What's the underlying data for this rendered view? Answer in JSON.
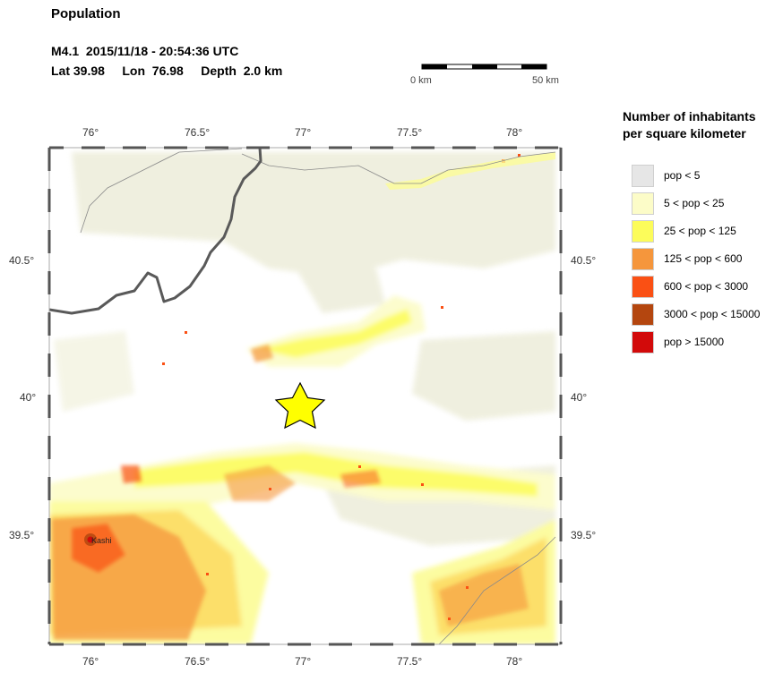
{
  "title": "Population",
  "event": {
    "line1": "M4.1  2015/11/18 - 20:54:36 UTC",
    "line2": "Lat 39.98     Lon  76.98     Depth  2.0 km",
    "lat": 39.98,
    "lon": 76.98,
    "magnitude": 4.1,
    "depth_km": 2.0
  },
  "scale_bar": {
    "start_label": "0 km",
    "end_label": "50 km",
    "length_km": 50
  },
  "map": {
    "lon_range": [
      75.8,
      78.2
    ],
    "lat_range": [
      39.08,
      40.91
    ],
    "lon_ticks": [
      {
        "value": 76.0,
        "label": "76°"
      },
      {
        "value": 76.5,
        "label": "76.5°"
      },
      {
        "value": 77.0,
        "label": "77°"
      },
      {
        "value": 77.5,
        "label": "77.5°"
      },
      {
        "value": 78.0,
        "label": "78°"
      }
    ],
    "lat_ticks": [
      {
        "value": 40.5,
        "label": "40.5°"
      },
      {
        "value": 40.0,
        "label": "40°"
      },
      {
        "value": 39.5,
        "label": "39.5°"
      }
    ],
    "city": {
      "name": "Kashi",
      "lon": 75.99,
      "lat": 39.47
    }
  },
  "legend": {
    "title_line1": "Number of inhabitants",
    "title_line2": "per square kilometer",
    "items": [
      {
        "label": "pop < 5",
        "color": "#e6e6e6"
      },
      {
        "label": "5 < pop < 25",
        "color": "#fcfcc8"
      },
      {
        "label": "25 < pop < 125",
        "color": "#fcfc5a"
      },
      {
        "label": "125 < pop < 600",
        "color": "#f5963c"
      },
      {
        "label": "600 < pop < 3000",
        "color": "#fa5014"
      },
      {
        "label": "3000 < pop < 15000",
        "color": "#b4460f"
      },
      {
        "label": "pop > 15000",
        "color": "#d20a0a"
      }
    ]
  },
  "colors": {
    "epicenter": "#ffff00",
    "low_density": "#eeeedc",
    "boundary": "#595959"
  }
}
